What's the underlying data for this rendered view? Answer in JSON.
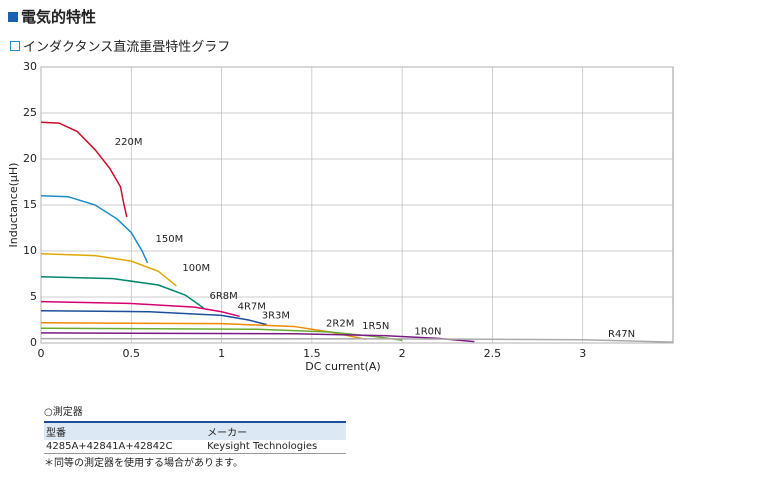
{
  "header": {
    "title": "電気的特性",
    "subtitle": "インダクタンス直流重畳特性グラフ"
  },
  "chart_data": {
    "type": "line",
    "x_label": "DC current(A)",
    "y_label": "Inductance(μH)",
    "xlim": [
      0,
      3.5
    ],
    "xticks": [
      0,
      0.5,
      1,
      1.5,
      2,
      2.5,
      3
    ],
    "ylim": [
      0,
      30
    ],
    "yticks": [
      0,
      5,
      10,
      15,
      20,
      25,
      30
    ],
    "grid": true,
    "series": [
      {
        "name": "220M",
        "color": "#c8102e",
        "x": [
          0,
          0.1,
          0.2,
          0.3,
          0.38,
          0.44,
          0.46,
          0.475
        ],
        "values": [
          24,
          23.9,
          23,
          21,
          19,
          17,
          15,
          13.7
        ]
      },
      {
        "name": "150M",
        "color": "#1a8ccc",
        "x": [
          0,
          0.15,
          0.3,
          0.42,
          0.5,
          0.56,
          0.59
        ],
        "values": [
          16,
          15.9,
          15,
          13.5,
          12,
          10,
          8.7
        ]
      },
      {
        "name": "100M",
        "color": "#e0a800",
        "x": [
          0,
          0.3,
          0.5,
          0.65,
          0.75
        ],
        "values": [
          9.7,
          9.5,
          8.9,
          7.8,
          6.2
        ]
      },
      {
        "name": "6R8M",
        "color": "#00876c",
        "x": [
          0,
          0.4,
          0.65,
          0.8,
          0.9
        ],
        "values": [
          7.2,
          7.0,
          6.3,
          5.2,
          3.8
        ]
      },
      {
        "name": "4R7M",
        "color": "#d6006f",
        "x": [
          0,
          0.5,
          0.85,
          1.0,
          1.1
        ],
        "values": [
          4.5,
          4.3,
          3.9,
          3.4,
          2.9
        ]
      },
      {
        "name": "3R3M",
        "color": "#1b4f9c",
        "x": [
          0,
          0.6,
          1.0,
          1.15,
          1.25
        ],
        "values": [
          3.5,
          3.4,
          3.0,
          2.5,
          2.0
        ]
      },
      {
        "name": "2R2M",
        "color": "#f08a00",
        "x": [
          0,
          1.0,
          1.4,
          1.6,
          1.8
        ],
        "values": [
          2.2,
          2.1,
          1.8,
          1.2,
          0.4
        ]
      },
      {
        "name": "1R5N",
        "color": "#6aab2e",
        "x": [
          0,
          1.2,
          1.6,
          1.85,
          2.0
        ],
        "values": [
          1.6,
          1.5,
          1.2,
          0.7,
          0.3
        ]
      },
      {
        "name": "1R0N",
        "color": "#7a1a85",
        "x": [
          0,
          1.4,
          1.9,
          2.2,
          2.4
        ],
        "values": [
          1.1,
          1.0,
          0.8,
          0.5,
          0.15
        ]
      },
      {
        "name": "R47N",
        "color": "#aaaaaa",
        "x": [
          0,
          2,
          3,
          3.5
        ],
        "values": [
          0.47,
          0.45,
          0.35,
          0.1
        ]
      }
    ]
  },
  "table": {
    "caption": "測定器",
    "columns": [
      "型番",
      "メーカー"
    ],
    "rows": [
      [
        "4285A+42841A+42842C",
        "Keysight Technologies"
      ]
    ],
    "note": "＊同等の測定器を使用する場合があります。"
  }
}
